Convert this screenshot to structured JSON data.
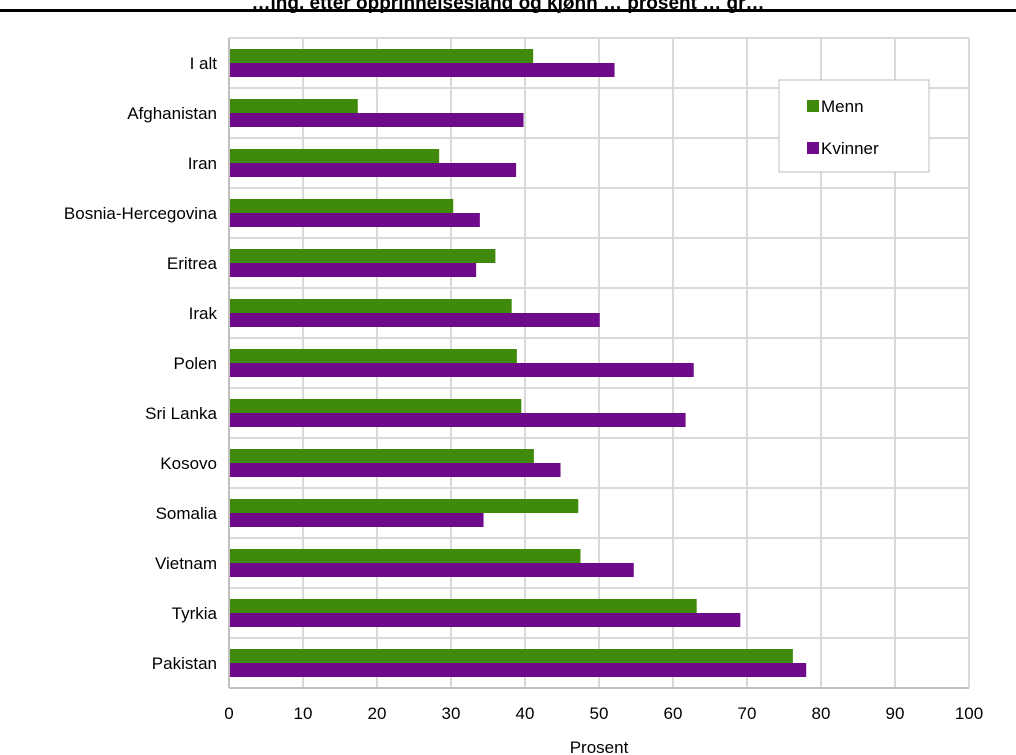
{
  "chart_data": {
    "type": "bar",
    "orientation": "horizontal",
    "title": "…ing, etter opprinnelsesland og kjønn … prosent … gr…",
    "xlabel": "Prosent",
    "ylabel": "",
    "xlim": [
      0,
      100
    ],
    "x_ticks": [
      "0",
      "10",
      "20",
      "30",
      "40",
      "50",
      "60",
      "70",
      "80",
      "90",
      "100"
    ],
    "grid": true,
    "legend_position": "top-right",
    "categories": [
      "I alt",
      "Afghanistan",
      "Iran",
      "Bosnia-Hercegovina",
      "Eritrea",
      "Irak",
      "Polen",
      "Sri Lanka",
      "Kosovo",
      "Somalia",
      "Vietnam",
      "Tyrkia",
      "Pakistan"
    ],
    "series": [
      {
        "name": "Menn",
        "color": "#3f8a0a",
        "values": [
          41.1,
          17.4,
          28.4,
          30.3,
          36.0,
          38.2,
          38.9,
          39.5,
          41.2,
          47.2,
          47.5,
          63.2,
          76.2
        ]
      },
      {
        "name": "Kvinner",
        "color": "#6f0a8a",
        "values": [
          52.1,
          39.8,
          38.8,
          33.9,
          33.4,
          50.1,
          62.8,
          61.7,
          44.8,
          34.4,
          54.7,
          69.1,
          78.0
        ]
      }
    ]
  }
}
